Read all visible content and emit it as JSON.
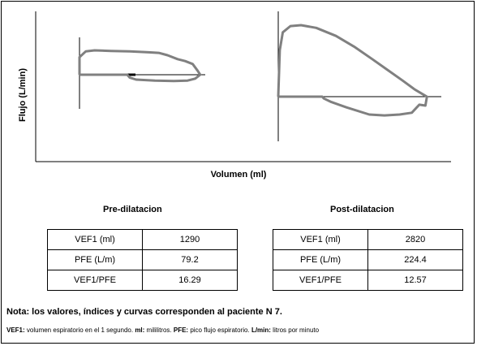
{
  "chart_data": {
    "type": "line",
    "ylabel": "Flujo (L/min)",
    "xlabel": "Volumen (ml)",
    "panels": [
      {
        "name": "pre",
        "series": [
          {
            "points": [
              [
                0,
                0
              ],
              [
                0,
                0.9
              ],
              [
                5,
                1.2
              ],
              [
                12,
                1.25
              ],
              [
                25,
                1.22
              ],
              [
                40,
                1.2
              ],
              [
                55,
                1.15
              ],
              [
                63,
                1.12
              ],
              [
                70,
                1.0
              ],
              [
                78,
                0.8
              ],
              [
                84,
                0.7
              ],
              [
                90,
                0.55
              ],
              [
                94,
                0.2
              ],
              [
                96,
                0
              ],
              [
                92,
                -0.2
              ],
              [
                86,
                -0.3
              ],
              [
                75,
                -0.32
              ],
              [
                60,
                -0.3
              ],
              [
                45,
                -0.25
              ],
              [
                40,
                -0.15
              ],
              [
                38,
                0
              ],
              [
                0,
                0
              ]
            ]
          }
        ]
      },
      {
        "name": "post",
        "series": [
          {
            "points": [
              [
                0,
                0
              ],
              [
                1,
                2.6
              ],
              [
                3,
                3.6
              ],
              [
                8,
                3.95
              ],
              [
                15,
                4.0
              ],
              [
                25,
                3.85
              ],
              [
                38,
                3.4
              ],
              [
                50,
                2.8
              ],
              [
                62,
                2.1
              ],
              [
                72,
                1.5
              ],
              [
                82,
                0.9
              ],
              [
                90,
                0.4
              ],
              [
                96,
                0.1
              ],
              [
                98,
                0
              ],
              [
                97,
                -0.5
              ],
              [
                93,
                -0.45
              ],
              [
                88,
                -0.9
              ],
              [
                80,
                -1.0
              ],
              [
                70,
                -1.05
              ],
              [
                60,
                -1.0
              ],
              [
                45,
                -0.6
              ],
              [
                35,
                -0.3
              ],
              [
                30,
                -0.1
              ],
              [
                29,
                0
              ],
              [
                0,
                0
              ]
            ]
          }
        ]
      }
    ]
  },
  "tables": {
    "pre": {
      "title": "Pre-dilatacion",
      "rows": [
        {
          "label": "VEF1 (ml)",
          "value": "1290"
        },
        {
          "label": "PFE (L/m)",
          "value": "79.2"
        },
        {
          "label": "VEF1/PFE",
          "value": "16.29"
        }
      ]
    },
    "post": {
      "title": "Post-dilatacion",
      "rows": [
        {
          "label": "VEF1 (ml)",
          "value": "2820"
        },
        {
          "label": "PFE (L/m)",
          "value": "224.4"
        },
        {
          "label": "VEF1/PFE",
          "value": "12.57"
        }
      ]
    }
  },
  "note": "Nota:  los valores, índices y curvas corresponden al paciente N   7.",
  "abbrev": {
    "k1": "VEF1:",
    "t1": " volumen  espiratorio  en el 1  segundo.  ",
    "k2": "ml:",
    "t2": " mililitros. ",
    "k3": "PFE:",
    "t3": " pico flujo espiratorio. ",
    "k4": "L/min:",
    "t4": " litros por minuto"
  },
  "colors": {
    "curve": "#808080",
    "axis": "#000000"
  }
}
